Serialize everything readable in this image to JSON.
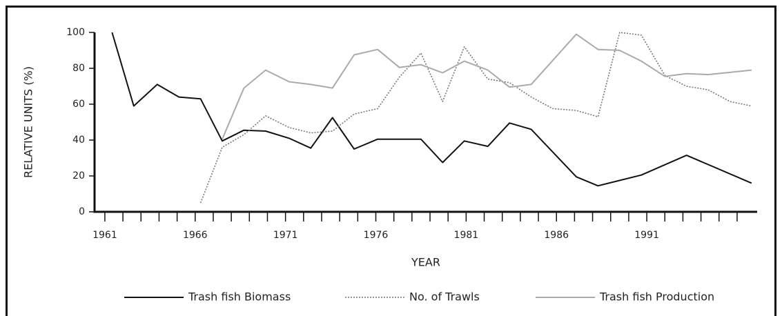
{
  "chart_data": {
    "type": "line",
    "xlabel": "YEAR",
    "ylabel": "RELATIVE UNITS (%)",
    "xlim": [
      1960.43,
      1997.11
    ],
    "ylim": [
      0,
      100
    ],
    "xticks": [
      1961,
      1966,
      1971,
      1976,
      1981,
      1986,
      1991
    ],
    "xminor": [
      1962,
      1963,
      1964,
      1965,
      1967,
      1968,
      1969,
      1970,
      1972,
      1973,
      1974,
      1975,
      1977,
      1978,
      1979,
      1980,
      1982,
      1983,
      1984,
      1985,
      1987,
      1988,
      1989,
      1990,
      1992,
      1993,
      1994,
      1995,
      1996
    ],
    "yticks": [
      0,
      20,
      40,
      60,
      80,
      100
    ],
    "legend": "bottom",
    "series": [
      {
        "name": "Trash fish Biomass",
        "color": "#111111",
        "style": "solid",
        "x": [
          1961.4,
          1962.6,
          1963.9,
          1965.1,
          1966.3,
          1967.5,
          1968.7,
          1969.9,
          1971.2,
          1972.4,
          1973.6,
          1974.8,
          1976.1,
          1977.3,
          1978.5,
          1979.7,
          1980.9,
          1982.2,
          1983.4,
          1984.6,
          1987.1,
          1988.3,
          1990.7,
          1993.2,
          1996.8
        ],
        "values": [
          100,
          59,
          71,
          64,
          63,
          39.5,
          45.5,
          45,
          41,
          35.5,
          52.5,
          35,
          40.5,
          40.5,
          40.5,
          27.5,
          39.5,
          36.5,
          49.5,
          46,
          19.5,
          14.5,
          20.5,
          31.5,
          16
        ]
      },
      {
        "name": "No. of Trawls",
        "color": "#777777",
        "style": "dotted",
        "x": [
          1966.3,
          1967.5,
          1968.7,
          1969.9,
          1971.2,
          1972.4,
          1973.6,
          1974.8,
          1976.1,
          1977.3,
          1978.5,
          1979.7,
          1980.9,
          1982.2,
          1983.4,
          1984.6,
          1985.8,
          1987.1,
          1988.3,
          1989.5,
          1990.7,
          1992.0,
          1993.2,
          1994.4,
          1995.6,
          1996.8
        ],
        "values": [
          5,
          36,
          43,
          53.5,
          47,
          44,
          45,
          54.5,
          57.5,
          75,
          88.5,
          61.5,
          92,
          74,
          72,
          64,
          57.5,
          56.5,
          53,
          100,
          98.5,
          76,
          70,
          68,
          61.5,
          59
        ]
      },
      {
        "name": "Trash fish Production",
        "color": "#aaaaaa",
        "style": "solid",
        "x": [
          1967.5,
          1968.7,
          1969.9,
          1971.2,
          1972.4,
          1973.6,
          1974.8,
          1976.1,
          1977.3,
          1978.5,
          1979.7,
          1980.9,
          1982.2,
          1983.4,
          1984.6,
          1987.1,
          1988.3,
          1989.5,
          1990.7,
          1992.0,
          1993.2,
          1994.4,
          1996.8
        ],
        "values": [
          40.5,
          69,
          79,
          72.5,
          71,
          69,
          87.5,
          90.5,
          80.5,
          82,
          77.5,
          84,
          79,
          69.5,
          71,
          99,
          90.5,
          90,
          84,
          75.5,
          77,
          76.5,
          79
        ]
      }
    ]
  }
}
